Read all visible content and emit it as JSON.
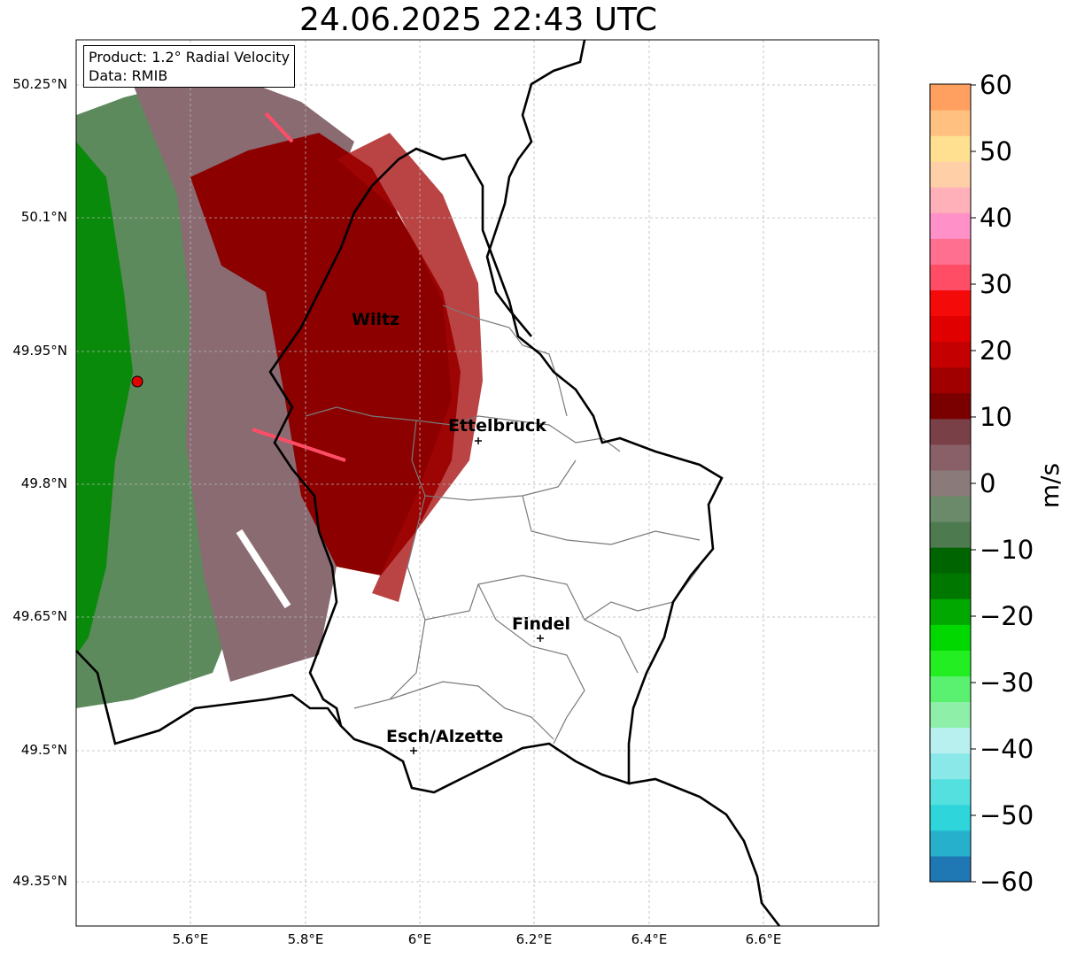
{
  "title": "24.06.2025 22:43 UTC",
  "info": {
    "product": "Product: 1.2° Radial Velocity",
    "data_source": "Data: RMIB"
  },
  "axes": {
    "lat_ticks": [
      "50.25°N",
      "50.1°N",
      "49.95°N",
      "49.8°N",
      "49.65°N",
      "49.5°N",
      "49.35°N"
    ],
    "lon_ticks": [
      "5.6°E",
      "5.8°E",
      "6°E",
      "6.2°E",
      "6.4°E",
      "6.6°E"
    ],
    "lat_range": [
      49.3,
      50.3
    ],
    "lon_range": [
      5.4,
      6.8
    ],
    "grid": true
  },
  "colorbar": {
    "ticks": [
      "60",
      "50",
      "40",
      "30",
      "20",
      "10",
      "0",
      "−10",
      "−20",
      "−30",
      "−40",
      "−50",
      "−60"
    ],
    "unit": "m/s",
    "range": [
      -60,
      60
    ],
    "colors": [
      "#1f78b4",
      "#26b0cc",
      "#2ed6dc",
      "#55e0e0",
      "#8ae8e8",
      "#b8f0f0",
      "#8ef0a8",
      "#5af070",
      "#22ee22",
      "#00d800",
      "#00a800",
      "#007800",
      "#006400",
      "#4e7a50",
      "#6a8a6a",
      "#8a7a7a",
      "#8a6068",
      "#7a4048",
      "#7a0000",
      "#a00000",
      "#c40000",
      "#e00000",
      "#f50a0a",
      "#ff4d66",
      "#ff7090",
      "#ff90c8",
      "#ffb0b8",
      "#ffd0a8",
      "#ffe090",
      "#ffc080",
      "#ffa060"
    ]
  },
  "places": [
    {
      "name": "Wiltz"
    },
    {
      "name": "Ettelbruck"
    },
    {
      "name": "Findel"
    },
    {
      "name": "Esch/Alzette"
    }
  ],
  "radar_site": {
    "color": "#e00000"
  }
}
